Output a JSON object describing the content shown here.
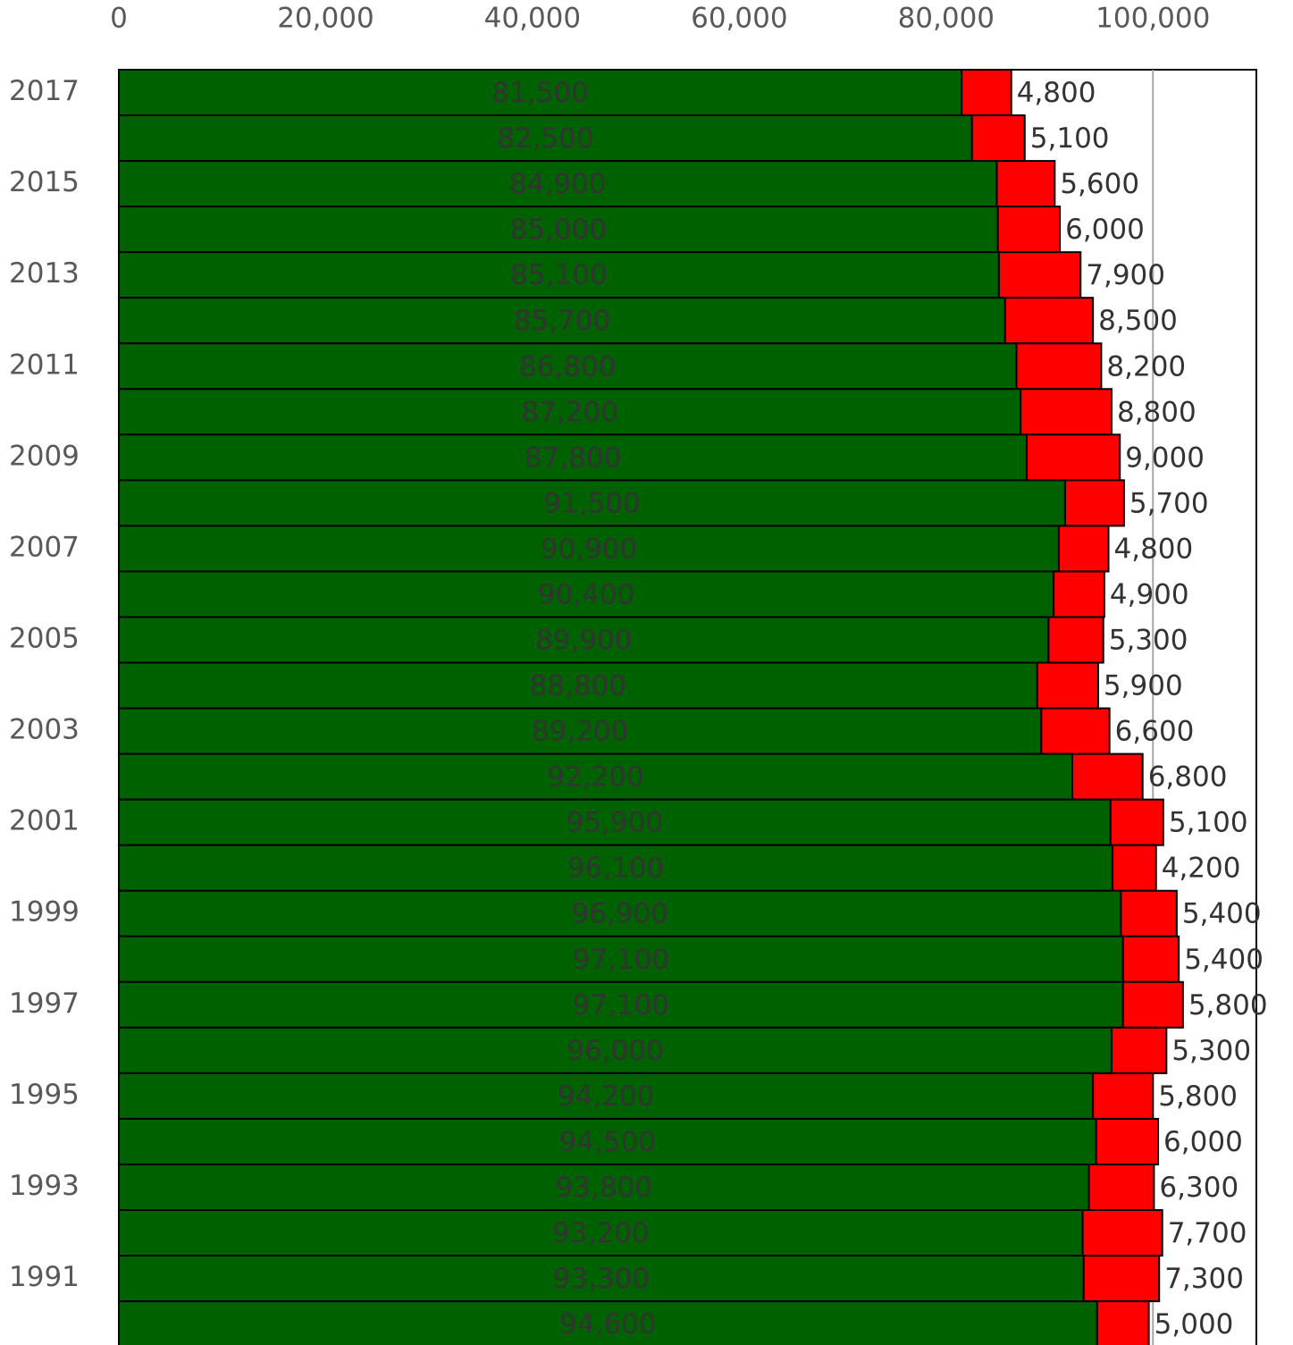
{
  "chart_data": {
    "type": "stacked-barh",
    "categories": [
      "2017",
      null,
      "2015",
      null,
      "2013",
      null,
      "2011",
      null,
      "2009",
      null,
      "2007",
      null,
      "2005",
      null,
      "2003",
      null,
      "2001",
      null,
      "1999",
      null,
      "1997",
      null,
      "1995",
      null,
      "1993",
      null,
      "1991",
      null
    ],
    "series": [
      {
        "color": "#006100",
        "values": [
          81500,
          82500,
          84900,
          85000,
          85100,
          85700,
          86800,
          87200,
          87800,
          91500,
          90900,
          90400,
          89900,
          88800,
          89200,
          92200,
          95900,
          96100,
          96900,
          97100,
          97100,
          96000,
          94200,
          94500,
          93800,
          93200,
          93300,
          94600
        ],
        "value_labels": [
          "81,500",
          "82,500",
          "84,900",
          "85,000",
          "85,100",
          "85,700",
          "86,800",
          "87,200",
          "87,800",
          "91,500",
          "90,900",
          "90,400",
          "89,900",
          "88,800",
          "89,200",
          "92,200",
          "95,900",
          "96,100",
          "96,900",
          "97,100",
          "97,100",
          "96,000",
          "94,200",
          "94,500",
          "93,800",
          "93,200",
          "93,300",
          "94,600"
        ]
      },
      {
        "color": "#ff0000",
        "values": [
          4800,
          5100,
          5600,
          6000,
          7900,
          8500,
          8200,
          8800,
          9000,
          5700,
          4800,
          4900,
          5300,
          5900,
          6600,
          6800,
          5100,
          4200,
          5400,
          5400,
          5800,
          5300,
          5800,
          6000,
          6300,
          7700,
          7300,
          5000
        ],
        "value_labels": [
          "4,800",
          "5,100",
          "5,600",
          "6,000",
          "7,900",
          "8,500",
          "8,200",
          "8,800",
          "9,000",
          "5,700",
          "4,800",
          "4,900",
          "5,300",
          "5,900",
          "6,600",
          "6,800",
          "5,100",
          "4,200",
          "5,400",
          "5,400",
          "5,800",
          "5,300",
          "5,800",
          "6,000",
          "6,300",
          "7,700",
          "7,300",
          "5,000"
        ]
      }
    ],
    "xlim": [
      0,
      110000
    ],
    "xticks": [
      0,
      {
        "value": 20000,
        "label": "20,000"
      },
      {
        "value": 40000,
        "label": "40,000"
      },
      {
        "value": 60000,
        "label": "60,000"
      },
      {
        "value": 80000,
        "label": "80,000"
      },
      {
        "value": 100000,
        "label": "100,000"
      }
    ],
    "grid": true
  }
}
